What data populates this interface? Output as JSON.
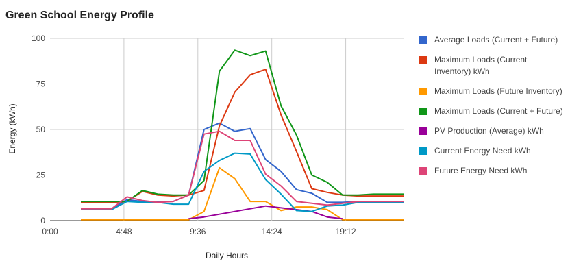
{
  "chart_data": {
    "type": "line",
    "title": "Green School Energy Profile",
    "xlabel": "Daily Hours",
    "ylabel": "Energy (kWh)",
    "xlim": [
      0,
      23
    ],
    "ylim": [
      0,
      100
    ],
    "x_ticks": [
      "0:00",
      "4:48",
      "9:36",
      "14:24",
      "19:12"
    ],
    "y_ticks": [
      "0",
      "25",
      "50",
      "75",
      "100"
    ],
    "grid": true,
    "legend_position": "right",
    "x": [
      2,
      3,
      4,
      5,
      6,
      7,
      8,
      9,
      10,
      11,
      12,
      13,
      14,
      15,
      16,
      17,
      18,
      19,
      20,
      21,
      22,
      23
    ],
    "series": [
      {
        "name": "Average Loads (Current + Future)",
        "color": "#3366cc",
        "values": [
          6.5,
          6.5,
          6.5,
          11.5,
          10.5,
          10.5,
          10.5,
          14,
          50,
          53.5,
          49,
          50.5,
          33.5,
          27,
          17,
          15,
          10,
          10,
          10.5,
          10.5,
          10.5,
          10.5
        ]
      },
      {
        "name": "Maximum Loads (Current Inventory) kWh",
        "color": "#dc3912",
        "values": [
          10,
          10,
          10,
          10.5,
          16,
          14,
          13.5,
          14,
          16.5,
          52,
          70.5,
          80,
          83,
          58,
          38,
          17.5,
          15.5,
          14,
          13.5,
          13.5,
          13.5,
          13.5
        ]
      },
      {
        "name": "Maximum Loads (Future Inventory)",
        "color": "#ff9900",
        "values": [
          0.5,
          0.5,
          0.5,
          0.5,
          0.5,
          0.5,
          0.5,
          0.5,
          5,
          29,
          23,
          10.5,
          10.5,
          5.5,
          7.5,
          7.5,
          6,
          0.5,
          0.5,
          0.5,
          0.5,
          0.5
        ]
      },
      {
        "name": "Maximum Loads (Current + Future)",
        "color": "#109618",
        "values": [
          10.5,
          10.5,
          10.5,
          10.5,
          16.5,
          14.5,
          14,
          14,
          22,
          82,
          93.5,
          90.5,
          93,
          63,
          47,
          25,
          21,
          14,
          14,
          14.5,
          14.5,
          14.5
        ]
      },
      {
        "name": "PV Production (Average) kWh",
        "color": "#990099",
        "values": [
          null,
          null,
          null,
          null,
          null,
          null,
          null,
          1,
          2,
          3.5,
          5,
          6.5,
          8,
          7,
          6,
          5,
          2,
          1,
          null,
          null,
          null,
          null
        ]
      },
      {
        "name": "Current Energy Need  kWh",
        "color": "#0099c6",
        "values": [
          6,
          6,
          6,
          10.5,
          10,
          10,
          9,
          9,
          27,
          33,
          37,
          36.5,
          22.5,
          14.5,
          5.5,
          5,
          8,
          8.5,
          10,
          10,
          10,
          10
        ]
      },
      {
        "name": "Future Energy Need kWh",
        "color": "#dd4477",
        "values": [
          6.5,
          6.5,
          6.5,
          13,
          11,
          10,
          10.5,
          14,
          47.5,
          49,
          44,
          44,
          25.5,
          19,
          10.5,
          9.5,
          8.5,
          9.5,
          10.5,
          10.5,
          10.5,
          10.5
        ]
      }
    ]
  }
}
